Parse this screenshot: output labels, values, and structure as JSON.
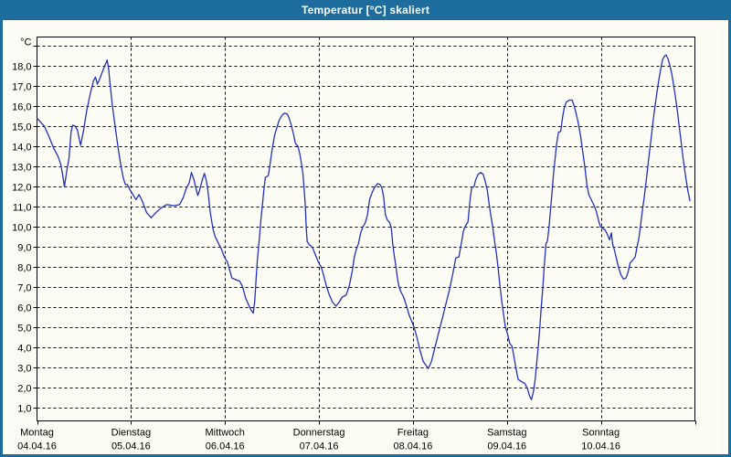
{
  "window": {
    "title": "Temperatur [°C] skaliert"
  },
  "colors": {
    "titlebar": "#1d6c9e",
    "border": "#1d6c9e",
    "background": "#fdfdf6",
    "grid": "#000000",
    "frame": "#000000",
    "curve": "#2230c0",
    "title_text": "#ffffff",
    "label_text": "#000000"
  },
  "chart_data": {
    "type": "line",
    "title": "Temperatur [°C] skaliert",
    "legend": "none",
    "grid": "dashed",
    "y_axis": {
      "unit_label": "°C",
      "ylim": [
        0.34,
        19.44
      ],
      "ticks": [
        [
          1,
          "1,0"
        ],
        [
          2,
          "2,0"
        ],
        [
          3,
          "3,0"
        ],
        [
          4,
          "4,0"
        ],
        [
          5,
          "5,0"
        ],
        [
          6,
          "6,0"
        ],
        [
          7,
          "7,0"
        ],
        [
          8,
          "8,0"
        ],
        [
          9,
          "9,0"
        ],
        [
          10,
          "10,0"
        ],
        [
          11,
          "11,0"
        ],
        [
          12,
          "12,0"
        ],
        [
          13,
          "13,0"
        ],
        [
          14,
          "14,0"
        ],
        [
          15,
          "15,0"
        ],
        [
          16,
          "16,0"
        ],
        [
          17,
          "17,0"
        ],
        [
          18,
          "18,0"
        ],
        [
          19,
          ""
        ]
      ]
    },
    "x_axis": {
      "xlim_days": [
        0,
        7
      ],
      "days": [
        {
          "name": "Montag",
          "date": "04.04.16"
        },
        {
          "name": "Dienstag",
          "date": "05.04.16"
        },
        {
          "name": "Mittwoch",
          "date": "06.04.16"
        },
        {
          "name": "Donnerstag",
          "date": "07.04.16"
        },
        {
          "name": "Freitag",
          "date": "08.04.16"
        },
        {
          "name": "Samstag",
          "date": "09.04.16"
        },
        {
          "name": "Sonntag",
          "date": "10.04.16"
        }
      ]
    },
    "series": [
      {
        "name": "Temperatur",
        "color": "#2230c0",
        "points": [
          [
            0.0,
            15.4
          ],
          [
            0.039,
            15.2
          ],
          [
            0.078,
            15.0
          ],
          [
            0.126,
            14.5
          ],
          [
            0.178,
            13.9
          ],
          [
            0.224,
            13.5
          ],
          [
            0.253,
            13.1
          ],
          [
            0.272,
            12.6
          ],
          [
            0.292,
            12.0
          ],
          [
            0.321,
            12.9
          ],
          [
            0.34,
            13.4
          ],
          [
            0.363,
            14.7
          ],
          [
            0.379,
            15.05
          ],
          [
            0.405,
            15.0
          ],
          [
            0.431,
            14.8
          ],
          [
            0.464,
            14.05
          ],
          [
            0.496,
            14.8
          ],
          [
            0.528,
            15.75
          ],
          [
            0.561,
            16.5
          ],
          [
            0.6,
            17.25
          ],
          [
            0.622,
            17.45
          ],
          [
            0.642,
            17.1
          ],
          [
            0.671,
            17.4
          ],
          [
            0.703,
            17.8
          ],
          [
            0.729,
            18.1
          ],
          [
            0.746,
            18.3
          ],
          [
            0.761,
            17.9
          ],
          [
            0.781,
            16.95
          ],
          [
            0.8,
            16.1
          ],
          [
            0.82,
            15.4
          ],
          [
            0.843,
            14.6
          ],
          [
            0.868,
            13.75
          ],
          [
            0.894,
            13.0
          ],
          [
            0.917,
            12.45
          ],
          [
            0.94,
            12.1
          ],
          [
            0.962,
            12.1
          ],
          [
            0.989,
            11.85
          ],
          [
            1.021,
            11.6
          ],
          [
            1.053,
            11.35
          ],
          [
            1.086,
            11.6
          ],
          [
            1.118,
            11.3
          ],
          [
            1.167,
            10.7
          ],
          [
            1.215,
            10.45
          ],
          [
            1.264,
            10.7
          ],
          [
            1.312,
            10.9
          ],
          [
            1.378,
            11.1
          ],
          [
            1.458,
            11.05
          ],
          [
            1.517,
            11.1
          ],
          [
            1.556,
            11.45
          ],
          [
            1.588,
            11.9
          ],
          [
            1.621,
            12.2
          ],
          [
            1.643,
            12.7
          ],
          [
            1.669,
            12.35
          ],
          [
            1.692,
            11.9
          ],
          [
            1.711,
            11.55
          ],
          [
            1.734,
            11.9
          ],
          [
            1.76,
            12.35
          ],
          [
            1.782,
            12.65
          ],
          [
            1.802,
            12.3
          ],
          [
            1.815,
            11.9
          ],
          [
            1.828,
            11.4
          ],
          [
            1.841,
            10.8
          ],
          [
            1.854,
            10.4
          ],
          [
            1.874,
            9.85
          ],
          [
            1.896,
            9.5
          ],
          [
            1.928,
            9.2
          ],
          [
            1.961,
            8.9
          ],
          [
            1.993,
            8.5
          ],
          [
            2.025,
            8.25
          ],
          [
            2.074,
            7.45
          ],
          [
            2.123,
            7.35
          ],
          [
            2.156,
            7.3
          ],
          [
            2.188,
            7.0
          ],
          [
            2.22,
            6.45
          ],
          [
            2.253,
            6.1
          ],
          [
            2.278,
            5.85
          ],
          [
            2.301,
            5.7
          ],
          [
            2.317,
            6.3
          ],
          [
            2.33,
            7.35
          ],
          [
            2.343,
            8.25
          ],
          [
            2.356,
            8.9
          ],
          [
            2.369,
            9.6
          ],
          [
            2.382,
            10.35
          ],
          [
            2.398,
            11.1
          ],
          [
            2.414,
            11.85
          ],
          [
            2.43,
            12.45
          ],
          [
            2.462,
            12.55
          ],
          [
            2.479,
            13.1
          ],
          [
            2.501,
            13.8
          ],
          [
            2.528,
            14.55
          ],
          [
            2.55,
            14.9
          ],
          [
            2.576,
            15.3
          ],
          [
            2.608,
            15.55
          ],
          [
            2.634,
            15.65
          ],
          [
            2.664,
            15.6
          ],
          [
            2.683,
            15.4
          ],
          [
            2.706,
            15.05
          ],
          [
            2.729,
            14.6
          ],
          [
            2.748,
            14.15
          ],
          [
            2.777,
            14.0
          ],
          [
            2.797,
            13.6
          ],
          [
            2.812,
            13.2
          ],
          [
            2.829,
            12.65
          ],
          [
            2.842,
            11.9
          ],
          [
            2.855,
            11.0
          ],
          [
            2.865,
            9.9
          ],
          [
            2.875,
            9.25
          ],
          [
            2.9,
            9.1
          ],
          [
            2.933,
            8.95
          ],
          [
            2.966,
            8.55
          ],
          [
            2.998,
            8.2
          ],
          [
            3.024,
            8.0
          ],
          [
            3.046,
            7.65
          ],
          [
            3.079,
            7.05
          ],
          [
            3.111,
            6.6
          ],
          [
            3.143,
            6.25
          ],
          [
            3.182,
            6.05
          ],
          [
            3.215,
            6.25
          ],
          [
            3.247,
            6.5
          ],
          [
            3.289,
            6.6
          ],
          [
            3.322,
            7.05
          ],
          [
            3.354,
            7.8
          ],
          [
            3.377,
            8.5
          ],
          [
            3.396,
            8.85
          ],
          [
            3.419,
            9.15
          ],
          [
            3.445,
            9.7
          ],
          [
            3.468,
            10.0
          ],
          [
            3.493,
            10.2
          ],
          [
            3.517,
            10.6
          ],
          [
            3.539,
            11.35
          ],
          [
            3.565,
            11.7
          ],
          [
            3.59,
            11.95
          ],
          [
            3.624,
            12.15
          ],
          [
            3.649,
            12.1
          ],
          [
            3.668,
            11.95
          ],
          [
            3.688,
            11.5
          ],
          [
            3.707,
            10.6
          ],
          [
            3.727,
            10.35
          ],
          [
            3.753,
            10.2
          ],
          [
            3.769,
            9.95
          ],
          [
            3.785,
            9.15
          ],
          [
            3.801,
            8.55
          ],
          [
            3.818,
            8.05
          ],
          [
            3.833,
            7.5
          ],
          [
            3.85,
            7.05
          ],
          [
            3.872,
            6.75
          ],
          [
            3.896,
            6.55
          ],
          [
            3.915,
            6.3
          ],
          [
            3.938,
            5.95
          ],
          [
            3.96,
            5.6
          ],
          [
            3.986,
            5.3
          ],
          [
            4.012,
            5.0
          ],
          [
            4.044,
            4.45
          ],
          [
            4.076,
            3.85
          ],
          [
            4.109,
            3.3
          ],
          [
            4.132,
            3.15
          ],
          [
            4.164,
            2.95
          ],
          [
            4.197,
            3.3
          ],
          [
            4.229,
            3.9
          ],
          [
            4.261,
            4.5
          ],
          [
            4.294,
            5.1
          ],
          [
            4.326,
            5.7
          ],
          [
            4.358,
            6.3
          ],
          [
            4.391,
            6.9
          ],
          [
            4.424,
            7.65
          ],
          [
            4.456,
            8.45
          ],
          [
            4.489,
            8.5
          ],
          [
            4.514,
            9.15
          ],
          [
            4.537,
            9.8
          ],
          [
            4.56,
            10.05
          ],
          [
            4.586,
            10.25
          ],
          [
            4.605,
            11.25
          ],
          [
            4.625,
            11.95
          ],
          [
            4.65,
            12.0
          ],
          [
            4.669,
            12.35
          ],
          [
            4.693,
            12.6
          ],
          [
            4.722,
            12.7
          ],
          [
            4.747,
            12.6
          ],
          [
            4.77,
            12.25
          ],
          [
            4.79,
            11.85
          ],
          [
            4.809,
            11.2
          ],
          [
            4.829,
            10.55
          ],
          [
            4.848,
            10.0
          ],
          [
            4.868,
            9.3
          ],
          [
            4.887,
            8.7
          ],
          [
            4.906,
            7.95
          ],
          [
            4.926,
            7.05
          ],
          [
            4.945,
            6.3
          ],
          [
            4.965,
            5.6
          ],
          [
            4.984,
            5.0
          ],
          [
            5.007,
            4.65
          ],
          [
            5.029,
            4.2
          ],
          [
            5.055,
            4.05
          ],
          [
            5.072,
            3.6
          ],
          [
            5.094,
            3.0
          ],
          [
            5.12,
            2.4
          ],
          [
            5.153,
            2.3
          ],
          [
            5.191,
            2.2
          ],
          [
            5.218,
            1.95
          ],
          [
            5.243,
            1.55
          ],
          [
            5.262,
            1.4
          ],
          [
            5.282,
            1.8
          ],
          [
            5.301,
            2.4
          ],
          [
            5.318,
            3.3
          ],
          [
            5.334,
            4.05
          ],
          [
            5.35,
            5.0
          ],
          [
            5.366,
            6.05
          ],
          [
            5.383,
            7.05
          ],
          [
            5.398,
            8.1
          ],
          [
            5.415,
            9.15
          ],
          [
            5.431,
            9.3
          ],
          [
            5.447,
            9.95
          ],
          [
            5.463,
            10.8
          ],
          [
            5.48,
            11.75
          ],
          [
            5.495,
            12.6
          ],
          [
            5.512,
            13.35
          ],
          [
            5.528,
            14.1
          ],
          [
            5.548,
            14.7
          ],
          [
            5.573,
            14.75
          ],
          [
            5.59,
            15.4
          ],
          [
            5.609,
            15.9
          ],
          [
            5.631,
            16.2
          ],
          [
            5.664,
            16.3
          ],
          [
            5.694,
            16.3
          ],
          [
            5.716,
            16.0
          ],
          [
            5.738,
            15.6
          ],
          [
            5.761,
            15.1
          ],
          [
            5.784,
            14.5
          ],
          [
            5.806,
            13.75
          ],
          [
            5.829,
            12.95
          ],
          [
            5.852,
            12.05
          ],
          [
            5.871,
            11.6
          ],
          [
            5.897,
            11.35
          ],
          [
            5.923,
            11.1
          ],
          [
            5.949,
            10.8
          ],
          [
            5.975,
            10.3
          ],
          [
            5.995,
            10.0
          ],
          [
            6.043,
            9.85
          ],
          [
            6.066,
            9.65
          ],
          [
            6.092,
            9.35
          ],
          [
            6.111,
            9.7
          ],
          [
            6.124,
            9.15
          ],
          [
            6.143,
            8.85
          ],
          [
            6.166,
            8.4
          ],
          [
            6.189,
            7.95
          ],
          [
            6.214,
            7.6
          ],
          [
            6.24,
            7.4
          ],
          [
            6.267,
            7.45
          ],
          [
            6.289,
            7.75
          ],
          [
            6.311,
            8.2
          ],
          [
            6.34,
            8.35
          ],
          [
            6.364,
            8.5
          ],
          [
            6.383,
            8.95
          ],
          [
            6.403,
            9.4
          ],
          [
            6.422,
            10.05
          ],
          [
            6.441,
            10.8
          ],
          [
            6.461,
            11.5
          ],
          [
            6.48,
            12.2
          ],
          [
            6.5,
            13.05
          ],
          [
            6.519,
            13.8
          ],
          [
            6.539,
            14.6
          ],
          [
            6.558,
            15.35
          ],
          [
            6.577,
            16.05
          ],
          [
            6.597,
            16.7
          ],
          [
            6.616,
            17.3
          ],
          [
            6.636,
            17.85
          ],
          [
            6.655,
            18.3
          ],
          [
            6.678,
            18.5
          ],
          [
            6.694,
            18.55
          ],
          [
            6.714,
            18.35
          ],
          [
            6.733,
            18.05
          ],
          [
            6.752,
            17.65
          ],
          [
            6.772,
            17.1
          ],
          [
            6.791,
            16.5
          ],
          [
            6.811,
            15.85
          ],
          [
            6.83,
            15.1
          ],
          [
            6.85,
            14.35
          ],
          [
            6.869,
            13.6
          ],
          [
            6.889,
            12.9
          ],
          [
            6.908,
            12.3
          ],
          [
            6.927,
            11.75
          ],
          [
            6.947,
            11.3
          ]
        ]
      }
    ]
  }
}
